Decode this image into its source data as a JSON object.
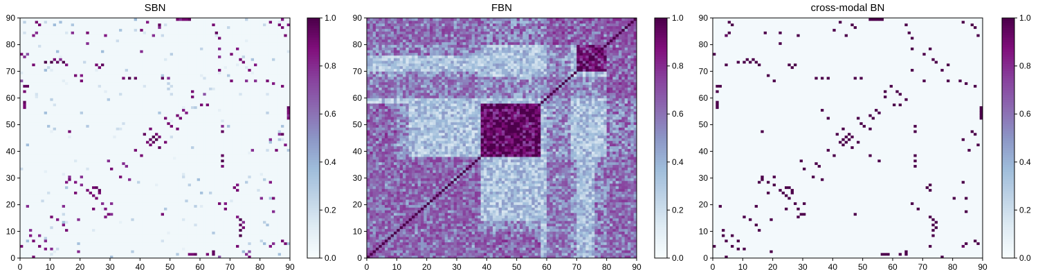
{
  "chart_data": [
    {
      "type": "heatmap",
      "title": "SBN",
      "matrix_size": 90,
      "xlim": [
        0,
        90
      ],
      "ylim": [
        0,
        90
      ],
      "xticks": [
        0,
        10,
        20,
        30,
        40,
        50,
        60,
        70,
        80,
        90
      ],
      "yticks": [
        0,
        10,
        20,
        30,
        40,
        50,
        60,
        70,
        80,
        90
      ],
      "colormap": "BuPu",
      "colorbar": {
        "range": [
          0.0,
          1.0
        ],
        "ticks": [
          "0.0",
          "0.2",
          "0.4",
          "0.6",
          "0.8",
          "1.0"
        ]
      },
      "pattern": "sparse",
      "background_value": 0.03,
      "cells": [
        [
          6,
          87,
          0.9
        ],
        [
          4,
          83,
          0.85
        ],
        [
          4,
          72,
          0.9
        ],
        [
          2,
          64,
          0.95
        ],
        [
          1,
          57,
          0.9
        ],
        [
          8,
          73,
          1.0
        ],
        [
          10,
          73,
          1.0
        ],
        [
          12,
          73,
          0.95
        ],
        [
          14,
          73,
          1.0
        ],
        [
          20,
          68,
          0.85
        ],
        [
          26,
          71,
          0.9
        ],
        [
          27,
          72,
          0.95
        ],
        [
          22,
          84,
          0.9
        ],
        [
          28,
          83,
          0.85
        ],
        [
          34,
          67,
          0.9
        ],
        [
          36,
          67,
          1.0
        ],
        [
          38,
          67,
          0.95
        ],
        [
          40,
          85,
          0.9
        ],
        [
          42,
          88,
          0.85
        ],
        [
          44,
          83,
          0.8
        ],
        [
          46,
          87,
          0.95
        ],
        [
          40,
          77,
          0.8
        ],
        [
          47,
          67,
          0.95
        ],
        [
          49,
          67,
          0.8
        ],
        [
          52,
          89,
          0.9
        ],
        [
          54,
          89,
          0.9
        ],
        [
          56,
          89,
          0.95
        ],
        [
          64,
          87,
          0.9
        ],
        [
          65,
          84,
          0.95
        ],
        [
          60,
          57,
          0.9
        ],
        [
          62,
          57,
          0.9
        ],
        [
          61,
          61,
          0.7
        ],
        [
          66,
          75,
          0.8
        ],
        [
          70,
          66,
          0.9
        ],
        [
          72,
          78,
          0.85
        ],
        [
          74,
          73,
          0.9
        ],
        [
          76,
          70,
          0.9
        ],
        [
          78,
          66,
          0.8
        ],
        [
          82,
          66,
          0.9
        ],
        [
          84,
          65,
          0.85
        ],
        [
          86,
          87,
          0.9
        ],
        [
          88,
          83,
          0.9
        ],
        [
          90,
          87,
          0.85
        ],
        [
          89,
          55,
          0.9
        ],
        [
          90,
          53,
          0.8
        ],
        [
          86,
          46,
          0.8
        ],
        [
          16,
          47,
          0.9
        ],
        [
          30,
          33,
          0.9
        ],
        [
          34,
          35,
          0.8
        ],
        [
          38,
          40,
          0.85
        ],
        [
          40,
          38,
          0.9
        ],
        [
          42,
          43,
          0.9
        ],
        [
          43,
          44,
          0.95
        ],
        [
          44,
          45,
          1.0
        ],
        [
          45,
          46,
          0.9
        ],
        [
          46,
          41,
          0.95
        ],
        [
          48,
          43,
          0.9
        ],
        [
          50,
          49,
          0.9
        ],
        [
          52,
          53,
          0.9
        ],
        [
          54,
          55,
          0.85
        ],
        [
          48,
          52,
          0.9
        ],
        [
          20,
          27,
          0.8
        ],
        [
          22,
          25,
          0.9
        ],
        [
          24,
          23,
          0.9
        ],
        [
          25,
          26,
          0.95
        ],
        [
          26,
          24,
          0.9
        ],
        [
          18,
          28,
          0.85
        ],
        [
          16,
          29,
          0.9
        ],
        [
          14,
          19,
          0.8
        ],
        [
          12,
          14,
          0.85
        ],
        [
          10,
          15,
          0.9
        ],
        [
          6,
          4,
          0.9
        ],
        [
          8,
          6,
          0.8
        ],
        [
          3,
          8,
          0.85
        ],
        [
          2,
          19,
          0.8
        ],
        [
          24,
          18,
          0.9
        ],
        [
          28,
          15,
          0.85
        ],
        [
          30,
          16,
          0.8
        ],
        [
          56,
          1,
          0.9
        ],
        [
          58,
          1,
          0.95
        ],
        [
          62,
          1,
          0.9
        ],
        [
          64,
          1,
          0.95
        ],
        [
          72,
          25,
          0.9
        ],
        [
          72,
          27,
          0.85
        ],
        [
          80,
          22,
          0.8
        ],
        [
          84,
          17,
          0.8
        ],
        [
          88,
          5,
          0.9
        ],
        [
          84,
          5,
          0.8
        ],
        [
          75,
          1,
          0.8
        ],
        [
          76,
          2,
          0.7
        ],
        [
          68,
          18,
          0.9
        ],
        [
          66,
          20,
          0.9
        ],
        [
          74,
          11,
          0.9
        ],
        [
          74,
          13,
          0.8
        ],
        [
          72,
          15,
          0.85
        ],
        [
          30,
          20,
          0.8
        ],
        [
          36,
          29,
          0.8
        ],
        [
          4,
          0,
          0.9
        ],
        [
          10,
          3,
          0.8
        ],
        [
          0,
          76,
          0.9
        ],
        [
          0,
          66,
          0.7
        ]
      ]
    },
    {
      "type": "heatmap",
      "title": "FBN",
      "matrix_size": 90,
      "xlim": [
        0,
        90
      ],
      "ylim": [
        0,
        90
      ],
      "xticks": [
        0,
        10,
        20,
        30,
        40,
        50,
        60,
        70,
        80,
        90
      ],
      "yticks": [
        0,
        10,
        20,
        30,
        40,
        50,
        60,
        70,
        80,
        90
      ],
      "colormap": "BuPu",
      "colorbar": {
        "range": [
          0.0,
          1.0
        ],
        "ticks": [
          "0.0",
          "0.2",
          "0.4",
          "0.6",
          "0.8",
          "1.0"
        ]
      },
      "pattern": "dense",
      "diagonal_value": 1.0,
      "blocks": [
        [
          38,
          58,
          38,
          58,
          0.85
        ],
        [
          0,
          38,
          0,
          38,
          0.55
        ],
        [
          60,
          70,
          0,
          38,
          0.5
        ],
        [
          76,
          90,
          0,
          38,
          0.55
        ],
        [
          70,
          80,
          70,
          80,
          0.8
        ],
        [
          0,
          90,
          80,
          90,
          0.55
        ],
        [
          0,
          90,
          60,
          68,
          0.5
        ],
        [
          80,
          90,
          60,
          90,
          0.6
        ],
        [
          38,
          58,
          0,
          10,
          0.6
        ],
        [
          0,
          14,
          38,
          58,
          0.5
        ]
      ]
    },
    {
      "type": "heatmap",
      "title": "cross-modal BN",
      "matrix_size": 90,
      "xlim": [
        0,
        90
      ],
      "ylim": [
        0,
        90
      ],
      "xticks": [
        0,
        10,
        20,
        30,
        40,
        50,
        60,
        70,
        80,
        90
      ],
      "yticks": [
        0,
        10,
        20,
        30,
        40,
        50,
        60,
        70,
        80,
        90
      ],
      "colormap": "BuPu",
      "colorbar": {
        "range": [
          0.0,
          1.0
        ],
        "ticks": [
          "0.0",
          "0.2",
          "0.4",
          "0.6",
          "0.8",
          "1.0"
        ]
      },
      "pattern": "sparse",
      "background_value": 0.02,
      "cells": [
        [
          6,
          87,
          1.0
        ],
        [
          4,
          83,
          0.95
        ],
        [
          4,
          72,
          1.0
        ],
        [
          2,
          64,
          1.0
        ],
        [
          1,
          57,
          1.0
        ],
        [
          8,
          73,
          1.0
        ],
        [
          10,
          73,
          1.0
        ],
        [
          12,
          73,
          1.0
        ],
        [
          14,
          73,
          1.0
        ],
        [
          26,
          71,
          1.0
        ],
        [
          27,
          72,
          1.0
        ],
        [
          22,
          84,
          1.0
        ],
        [
          28,
          83,
          1.0
        ],
        [
          34,
          67,
          1.0
        ],
        [
          36,
          67,
          1.0
        ],
        [
          38,
          67,
          1.0
        ],
        [
          40,
          85,
          1.0
        ],
        [
          42,
          88,
          1.0
        ],
        [
          44,
          83,
          1.0
        ],
        [
          46,
          87,
          1.0
        ],
        [
          47,
          67,
          1.0
        ],
        [
          49,
          67,
          1.0
        ],
        [
          52,
          89,
          1.0
        ],
        [
          54,
          89,
          1.0
        ],
        [
          56,
          89,
          1.0
        ],
        [
          64,
          87,
          1.0
        ],
        [
          65,
          84,
          1.0
        ],
        [
          60,
          57,
          1.0
        ],
        [
          62,
          57,
          1.0
        ],
        [
          70,
          66,
          1.0
        ],
        [
          72,
          78,
          1.0
        ],
        [
          74,
          73,
          1.0
        ],
        [
          76,
          70,
          1.0
        ],
        [
          78,
          66,
          1.0
        ],
        [
          82,
          66,
          1.0
        ],
        [
          84,
          65,
          1.0
        ],
        [
          86,
          87,
          1.0
        ],
        [
          88,
          83,
          1.0
        ],
        [
          89,
          55,
          1.0
        ],
        [
          90,
          53,
          1.0
        ],
        [
          16,
          47,
          1.0
        ],
        [
          30,
          33,
          1.0
        ],
        [
          34,
          35,
          1.0
        ],
        [
          38,
          40,
          1.0
        ],
        [
          40,
          38,
          1.0
        ],
        [
          42,
          43,
          1.0
        ],
        [
          43,
          44,
          1.0
        ],
        [
          44,
          45,
          1.0
        ],
        [
          45,
          46,
          1.0
        ],
        [
          46,
          41,
          1.0
        ],
        [
          48,
          43,
          1.0
        ],
        [
          50,
          49,
          1.0
        ],
        [
          52,
          53,
          1.0
        ],
        [
          54,
          55,
          1.0
        ],
        [
          48,
          52,
          1.0
        ],
        [
          20,
          27,
          1.0
        ],
        [
          22,
          25,
          1.0
        ],
        [
          24,
          23,
          1.0
        ],
        [
          25,
          26,
          1.0
        ],
        [
          26,
          24,
          1.0
        ],
        [
          18,
          28,
          1.0
        ],
        [
          16,
          29,
          1.0
        ],
        [
          14,
          19,
          1.0
        ],
        [
          12,
          14,
          1.0
        ],
        [
          10,
          15,
          1.0
        ],
        [
          6,
          4,
          1.0
        ],
        [
          8,
          6,
          1.0
        ],
        [
          3,
          8,
          1.0
        ],
        [
          2,
          19,
          1.0
        ],
        [
          24,
          18,
          1.0
        ],
        [
          28,
          15,
          1.0
        ],
        [
          30,
          16,
          1.0
        ],
        [
          56,
          1,
          1.0
        ],
        [
          58,
          1,
          1.0
        ],
        [
          62,
          1,
          1.0
        ],
        [
          64,
          1,
          1.0
        ],
        [
          72,
          25,
          1.0
        ],
        [
          72,
          27,
          1.0
        ],
        [
          80,
          22,
          1.0
        ],
        [
          84,
          17,
          1.0
        ],
        [
          88,
          5,
          1.0
        ],
        [
          84,
          5,
          1.0
        ],
        [
          68,
          18,
          1.0
        ],
        [
          66,
          20,
          1.0
        ],
        [
          74,
          11,
          1.0
        ],
        [
          74,
          13,
          1.0
        ],
        [
          72,
          15,
          1.0
        ],
        [
          30,
          20,
          1.0
        ],
        [
          36,
          29,
          1.0
        ],
        [
          4,
          0,
          1.0
        ],
        [
          10,
          3,
          1.0
        ],
        [
          0,
          76,
          1.0
        ],
        [
          62,
          61,
          1.0
        ],
        [
          64,
          59,
          1.0
        ],
        [
          86,
          47,
          1.0
        ],
        [
          52,
          38,
          1.0
        ],
        [
          55,
          36,
          1.0
        ]
      ]
    }
  ]
}
